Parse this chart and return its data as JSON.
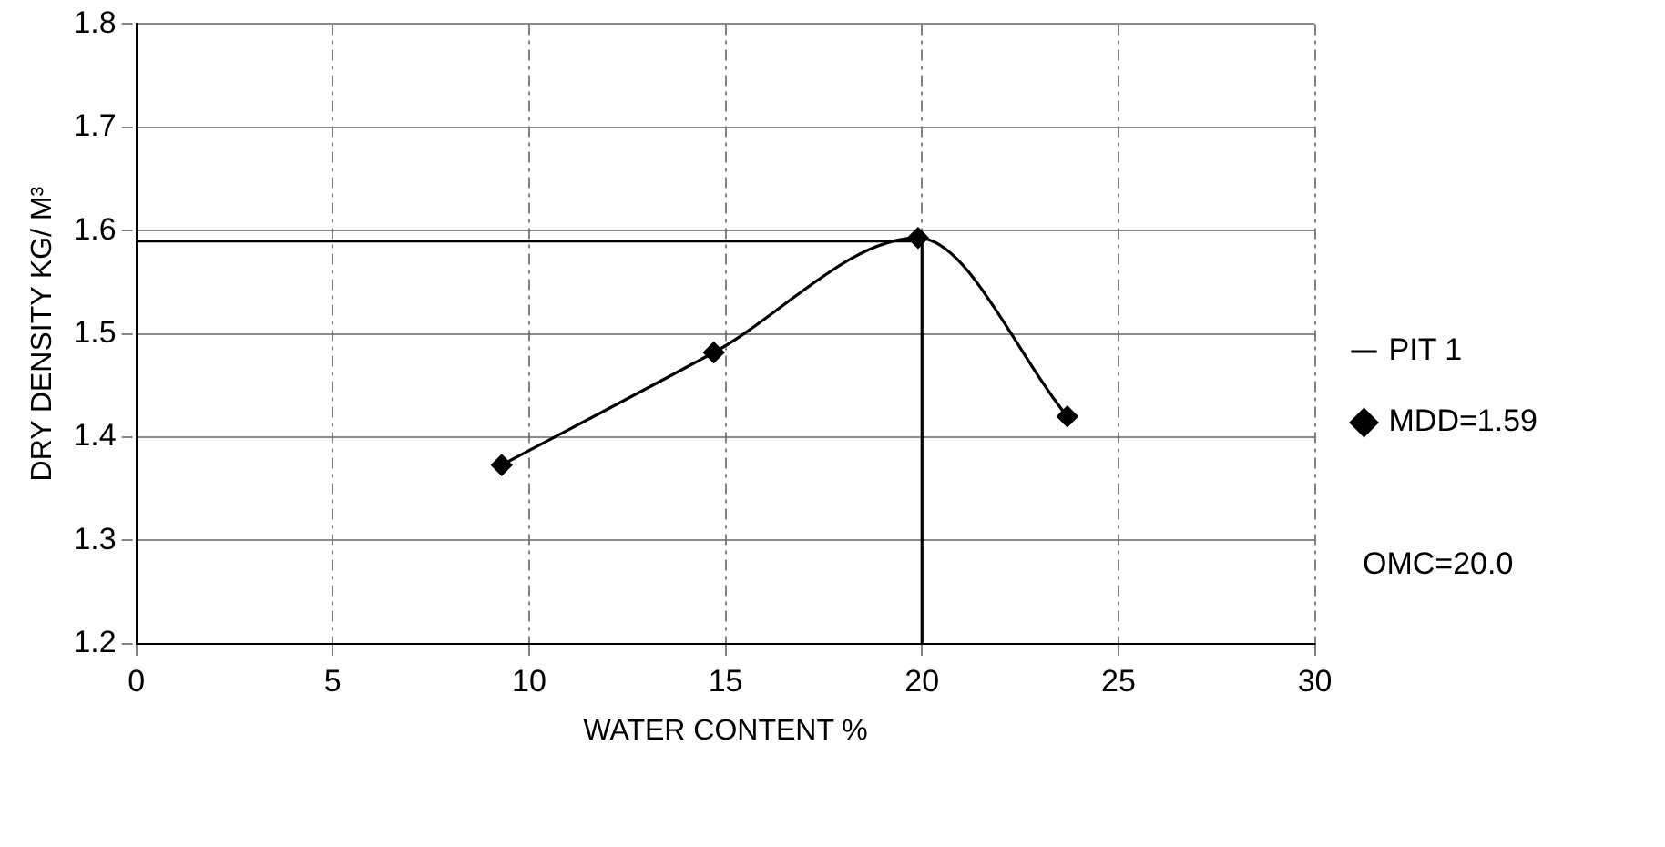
{
  "chart_data": {
    "type": "line",
    "xlabel": "WATER CONTENT %",
    "ylabel": "DRY DENSITY KG/ M³",
    "xlim": [
      0,
      30
    ],
    "xticks": [
      0,
      5,
      10,
      15,
      20,
      25,
      30
    ],
    "ylim": [
      1.2,
      1.8
    ],
    "yticks": [
      1.2,
      1.3,
      1.4,
      1.5,
      1.6,
      1.7,
      1.8
    ],
    "grid": true,
    "legend": "right",
    "series": [
      {
        "name": "PIT 1",
        "color": "#000000",
        "x": [
          0,
          20,
          20
        ],
        "values": [
          1.59,
          1.59,
          1.2
        ],
        "marker": "none"
      },
      {
        "name": "MDD=1.59",
        "color": "#000000",
        "x": [
          9.3,
          14.7,
          19.9,
          23.7
        ],
        "values": [
          1.373,
          1.482,
          1.593,
          1.42
        ],
        "marker": "diamond"
      }
    ],
    "annotations": [
      "OMC=20.0"
    ]
  }
}
